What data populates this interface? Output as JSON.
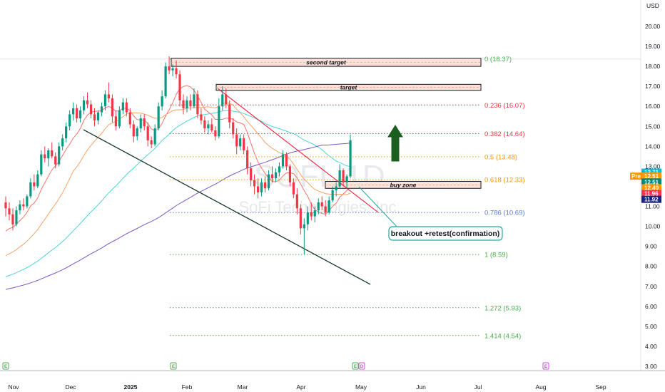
{
  "chart_data": {
    "type": "candlestick",
    "currency": "USD",
    "ylim": [
      3.0,
      20.5
    ],
    "y_ticks": [
      "20.00",
      "19.00",
      "18.00",
      "17.00",
      "16.00",
      "15.00",
      "14.00",
      "13.00",
      "12.00",
      "11.00",
      "10.00",
      "9.00",
      "8.00",
      "7.00",
      "6.00",
      "5.00",
      "4.00",
      "3.00"
    ],
    "x_ticks": [
      "Nov",
      "Dec",
      "2025",
      "Feb",
      "Mar",
      "Apr",
      "May",
      "Jun",
      "Jul",
      "Aug",
      "Sep"
    ],
    "watermark": {
      "symbol": "SOFI, 1D",
      "name": "SoFi Technologies, Inc."
    },
    "fib_levels": [
      {
        "label": "0 (18.37)",
        "value": 18.37,
        "color": "#4caf50"
      },
      {
        "label": "0.236 (16.07)",
        "value": 16.07,
        "color": "#f23645"
      },
      {
        "label": "0.382 (14.64)",
        "value": 14.64,
        "color": "#f23645"
      },
      {
        "label": "0.5 (13.48)",
        "value": 13.48,
        "color": "#ff9800"
      },
      {
        "label": "0.618 (12.33)",
        "value": 12.33,
        "color": "#ff9800"
      },
      {
        "label": "0.786 (10.69)",
        "value": 10.69,
        "color": "#5b7bd5"
      },
      {
        "label": "1 (8.59)",
        "value": 8.59,
        "color": "#4caf50"
      },
      {
        "label": "1.272 (5.93)",
        "value": 5.93,
        "color": "#4caf50"
      },
      {
        "label": "1.414 (4.54)",
        "value": 4.54,
        "color": "#4caf50"
      }
    ],
    "zones": [
      {
        "label": "second target",
        "low": 18.0,
        "high": 18.4
      },
      {
        "label": "target",
        "low": 16.8,
        "high": 17.1
      },
      {
        "label": "buy zone",
        "low": 11.9,
        "high": 12.25
      }
    ],
    "annotation": "breakout +retest(confirmation)",
    "price_tags": [
      {
        "label": "12.71",
        "value": 12.71,
        "bg": "#00bcd4",
        "fg": "#ffffff"
      },
      {
        "label": "12.51",
        "value": 12.51,
        "bg": "#ff9800",
        "fg": "#ffffff",
        "prefix": "Pre"
      },
      {
        "label": "12.51",
        "value": 12.22,
        "bg": "#00897b",
        "fg": "#ffffff"
      },
      {
        "label": "12.40",
        "value": 11.93,
        "bg": "#ff9800",
        "fg": "#ffffff"
      },
      {
        "label": "11.96",
        "value": 11.64,
        "bg": "#f23645",
        "fg": "#ffffff"
      },
      {
        "label": "11.92",
        "value": 11.35,
        "bg": "#1a237e",
        "fg": "#ffffff"
      }
    ],
    "event_markers": [
      {
        "label": "E",
        "x_label": "Oct 28",
        "color": "#4caf50"
      },
      {
        "label": "E",
        "x_label": "Jan 27",
        "color": "#4caf50"
      },
      {
        "label": "E",
        "x_label": "Apr 29",
        "color": "#4caf50"
      },
      {
        "label": "D",
        "x_label": "Apr 30",
        "color": "#e040fb"
      },
      {
        "label": "E",
        "x_label": "Jul 29",
        "color": "#e040fb"
      }
    ],
    "candles": [
      [
        11.2,
        11.5,
        10.5,
        10.9
      ],
      [
        10.9,
        11.2,
        10.3,
        10.6
      ],
      [
        10.6,
        10.9,
        9.8,
        10.1
      ],
      [
        10.1,
        11.0,
        10.0,
        10.8
      ],
      [
        10.8,
        11.3,
        10.6,
        11.1
      ],
      [
        11.1,
        11.4,
        10.8,
        11.0
      ],
      [
        11.0,
        11.6,
        10.9,
        11.5
      ],
      [
        11.5,
        12.4,
        11.4,
        12.2
      ],
      [
        12.2,
        12.6,
        11.8,
        12.0
      ],
      [
        12.0,
        12.8,
        11.9,
        12.6
      ],
      [
        12.6,
        13.8,
        12.5,
        13.6
      ],
      [
        13.6,
        14.0,
        13.2,
        13.4
      ],
      [
        13.4,
        13.9,
        13.0,
        13.8
      ],
      [
        13.8,
        14.2,
        13.4,
        13.5
      ],
      [
        13.5,
        13.7,
        12.9,
        13.1
      ],
      [
        13.1,
        14.2,
        13.0,
        14.0
      ],
      [
        14.0,
        14.6,
        13.8,
        14.4
      ],
      [
        14.4,
        15.2,
        14.2,
        15.0
      ],
      [
        15.0,
        15.8,
        14.8,
        15.6
      ],
      [
        15.6,
        16.2,
        15.3,
        15.9
      ],
      [
        15.9,
        16.1,
        15.2,
        15.4
      ],
      [
        15.4,
        16.0,
        15.2,
        15.8
      ],
      [
        15.8,
        16.5,
        15.6,
        16.3
      ],
      [
        16.3,
        16.7,
        15.9,
        16.1
      ],
      [
        16.1,
        16.3,
        15.4,
        15.6
      ],
      [
        15.6,
        15.9,
        15.0,
        15.3
      ],
      [
        15.3,
        15.8,
        15.1,
        15.7
      ],
      [
        15.7,
        16.2,
        15.5,
        16.0
      ],
      [
        16.0,
        16.8,
        15.8,
        16.6
      ],
      [
        16.6,
        17.2,
        16.2,
        16.4
      ],
      [
        16.4,
        16.6,
        15.2,
        15.5
      ],
      [
        15.5,
        15.8,
        14.8,
        15.0
      ],
      [
        15.0,
        16.0,
        14.9,
        15.8
      ],
      [
        15.8,
        16.4,
        15.6,
        16.2
      ],
      [
        16.2,
        16.4,
        15.5,
        15.7
      ],
      [
        15.7,
        15.9,
        14.9,
        15.1
      ],
      [
        15.1,
        15.3,
        14.2,
        14.5
      ],
      [
        14.5,
        15.0,
        14.3,
        14.9
      ],
      [
        14.9,
        15.6,
        14.7,
        15.4
      ],
      [
        15.4,
        15.6,
        14.8,
        15.0
      ],
      [
        15.0,
        15.2,
        14.0,
        14.3
      ],
      [
        14.3,
        14.5,
        13.9,
        14.1
      ],
      [
        14.1,
        15.1,
        14.0,
        14.9
      ],
      [
        14.9,
        16.2,
        14.8,
        16.0
      ],
      [
        16.0,
        16.8,
        15.8,
        16.5
      ],
      [
        16.5,
        18.2,
        16.4,
        18.0
      ],
      [
        18.0,
        18.5,
        17.6,
        17.8
      ],
      [
        17.8,
        18.1,
        17.5,
        17.9
      ],
      [
        17.9,
        18.3,
        17.4,
        17.6
      ],
      [
        17.6,
        17.8,
        16.0,
        16.3
      ],
      [
        16.3,
        16.6,
        15.6,
        15.9
      ],
      [
        15.9,
        16.5,
        15.7,
        16.3
      ],
      [
        16.3,
        16.6,
        15.8,
        16.0
      ],
      [
        16.0,
        16.9,
        15.9,
        16.6
      ],
      [
        16.6,
        16.8,
        15.4,
        15.6
      ],
      [
        15.6,
        15.9,
        15.1,
        15.3
      ],
      [
        15.3,
        15.5,
        14.7,
        14.9
      ],
      [
        14.9,
        15.3,
        14.6,
        15.1
      ],
      [
        15.1,
        15.4,
        14.7,
        14.8
      ],
      [
        14.8,
        15.0,
        14.3,
        14.5
      ],
      [
        14.5,
        16.4,
        14.4,
        16.0
      ],
      [
        16.0,
        17.0,
        15.8,
        16.6
      ],
      [
        16.6,
        16.9,
        15.9,
        16.1
      ],
      [
        16.1,
        16.3,
        14.9,
        15.2
      ],
      [
        15.2,
        15.4,
        14.4,
        14.6
      ],
      [
        14.6,
        14.9,
        13.6,
        14.0
      ],
      [
        14.0,
        14.6,
        13.8,
        14.4
      ],
      [
        14.4,
        14.6,
        13.6,
        13.8
      ],
      [
        13.8,
        14.0,
        12.6,
        12.9
      ],
      [
        12.9,
        13.2,
        12.0,
        12.3
      ],
      [
        12.3,
        12.6,
        11.6,
        12.0
      ],
      [
        12.0,
        12.4,
        11.4,
        11.7
      ],
      [
        11.7,
        12.4,
        11.5,
        12.2
      ],
      [
        12.2,
        12.5,
        11.7,
        11.9
      ],
      [
        11.9,
        12.8,
        11.8,
        12.6
      ],
      [
        12.6,
        13.0,
        12.2,
        12.4
      ],
      [
        12.4,
        12.9,
        12.2,
        12.7
      ],
      [
        12.7,
        13.2,
        12.5,
        13.0
      ],
      [
        13.0,
        13.8,
        12.9,
        13.6
      ],
      [
        13.6,
        13.7,
        12.8,
        13.0
      ],
      [
        13.0,
        13.1,
        12.0,
        12.2
      ],
      [
        12.2,
        12.4,
        11.4,
        11.6
      ],
      [
        11.6,
        11.9,
        10.6,
        10.9
      ],
      [
        10.9,
        11.1,
        9.6,
        9.9
      ],
      [
        9.9,
        10.4,
        8.6,
        10.1
      ],
      [
        10.1,
        11.0,
        9.8,
        10.7
      ],
      [
        10.7,
        11.2,
        10.3,
        10.5
      ],
      [
        10.5,
        11.0,
        10.2,
        10.8
      ],
      [
        10.8,
        11.4,
        10.6,
        11.2
      ],
      [
        11.2,
        11.5,
        10.8,
        11.0
      ],
      [
        11.0,
        11.3,
        10.5,
        10.7
      ],
      [
        10.7,
        11.5,
        10.6,
        11.3
      ],
      [
        11.3,
        12.0,
        11.2,
        11.8
      ],
      [
        11.8,
        12.2,
        11.5,
        12.0
      ],
      [
        12.0,
        13.1,
        11.9,
        12.8
      ],
      [
        12.8,
        12.9,
        12.0,
        12.2
      ],
      [
        12.2,
        12.6,
        11.9,
        12.5
      ],
      [
        12.5,
        14.6,
        12.4,
        14.3
      ]
    ]
  }
}
